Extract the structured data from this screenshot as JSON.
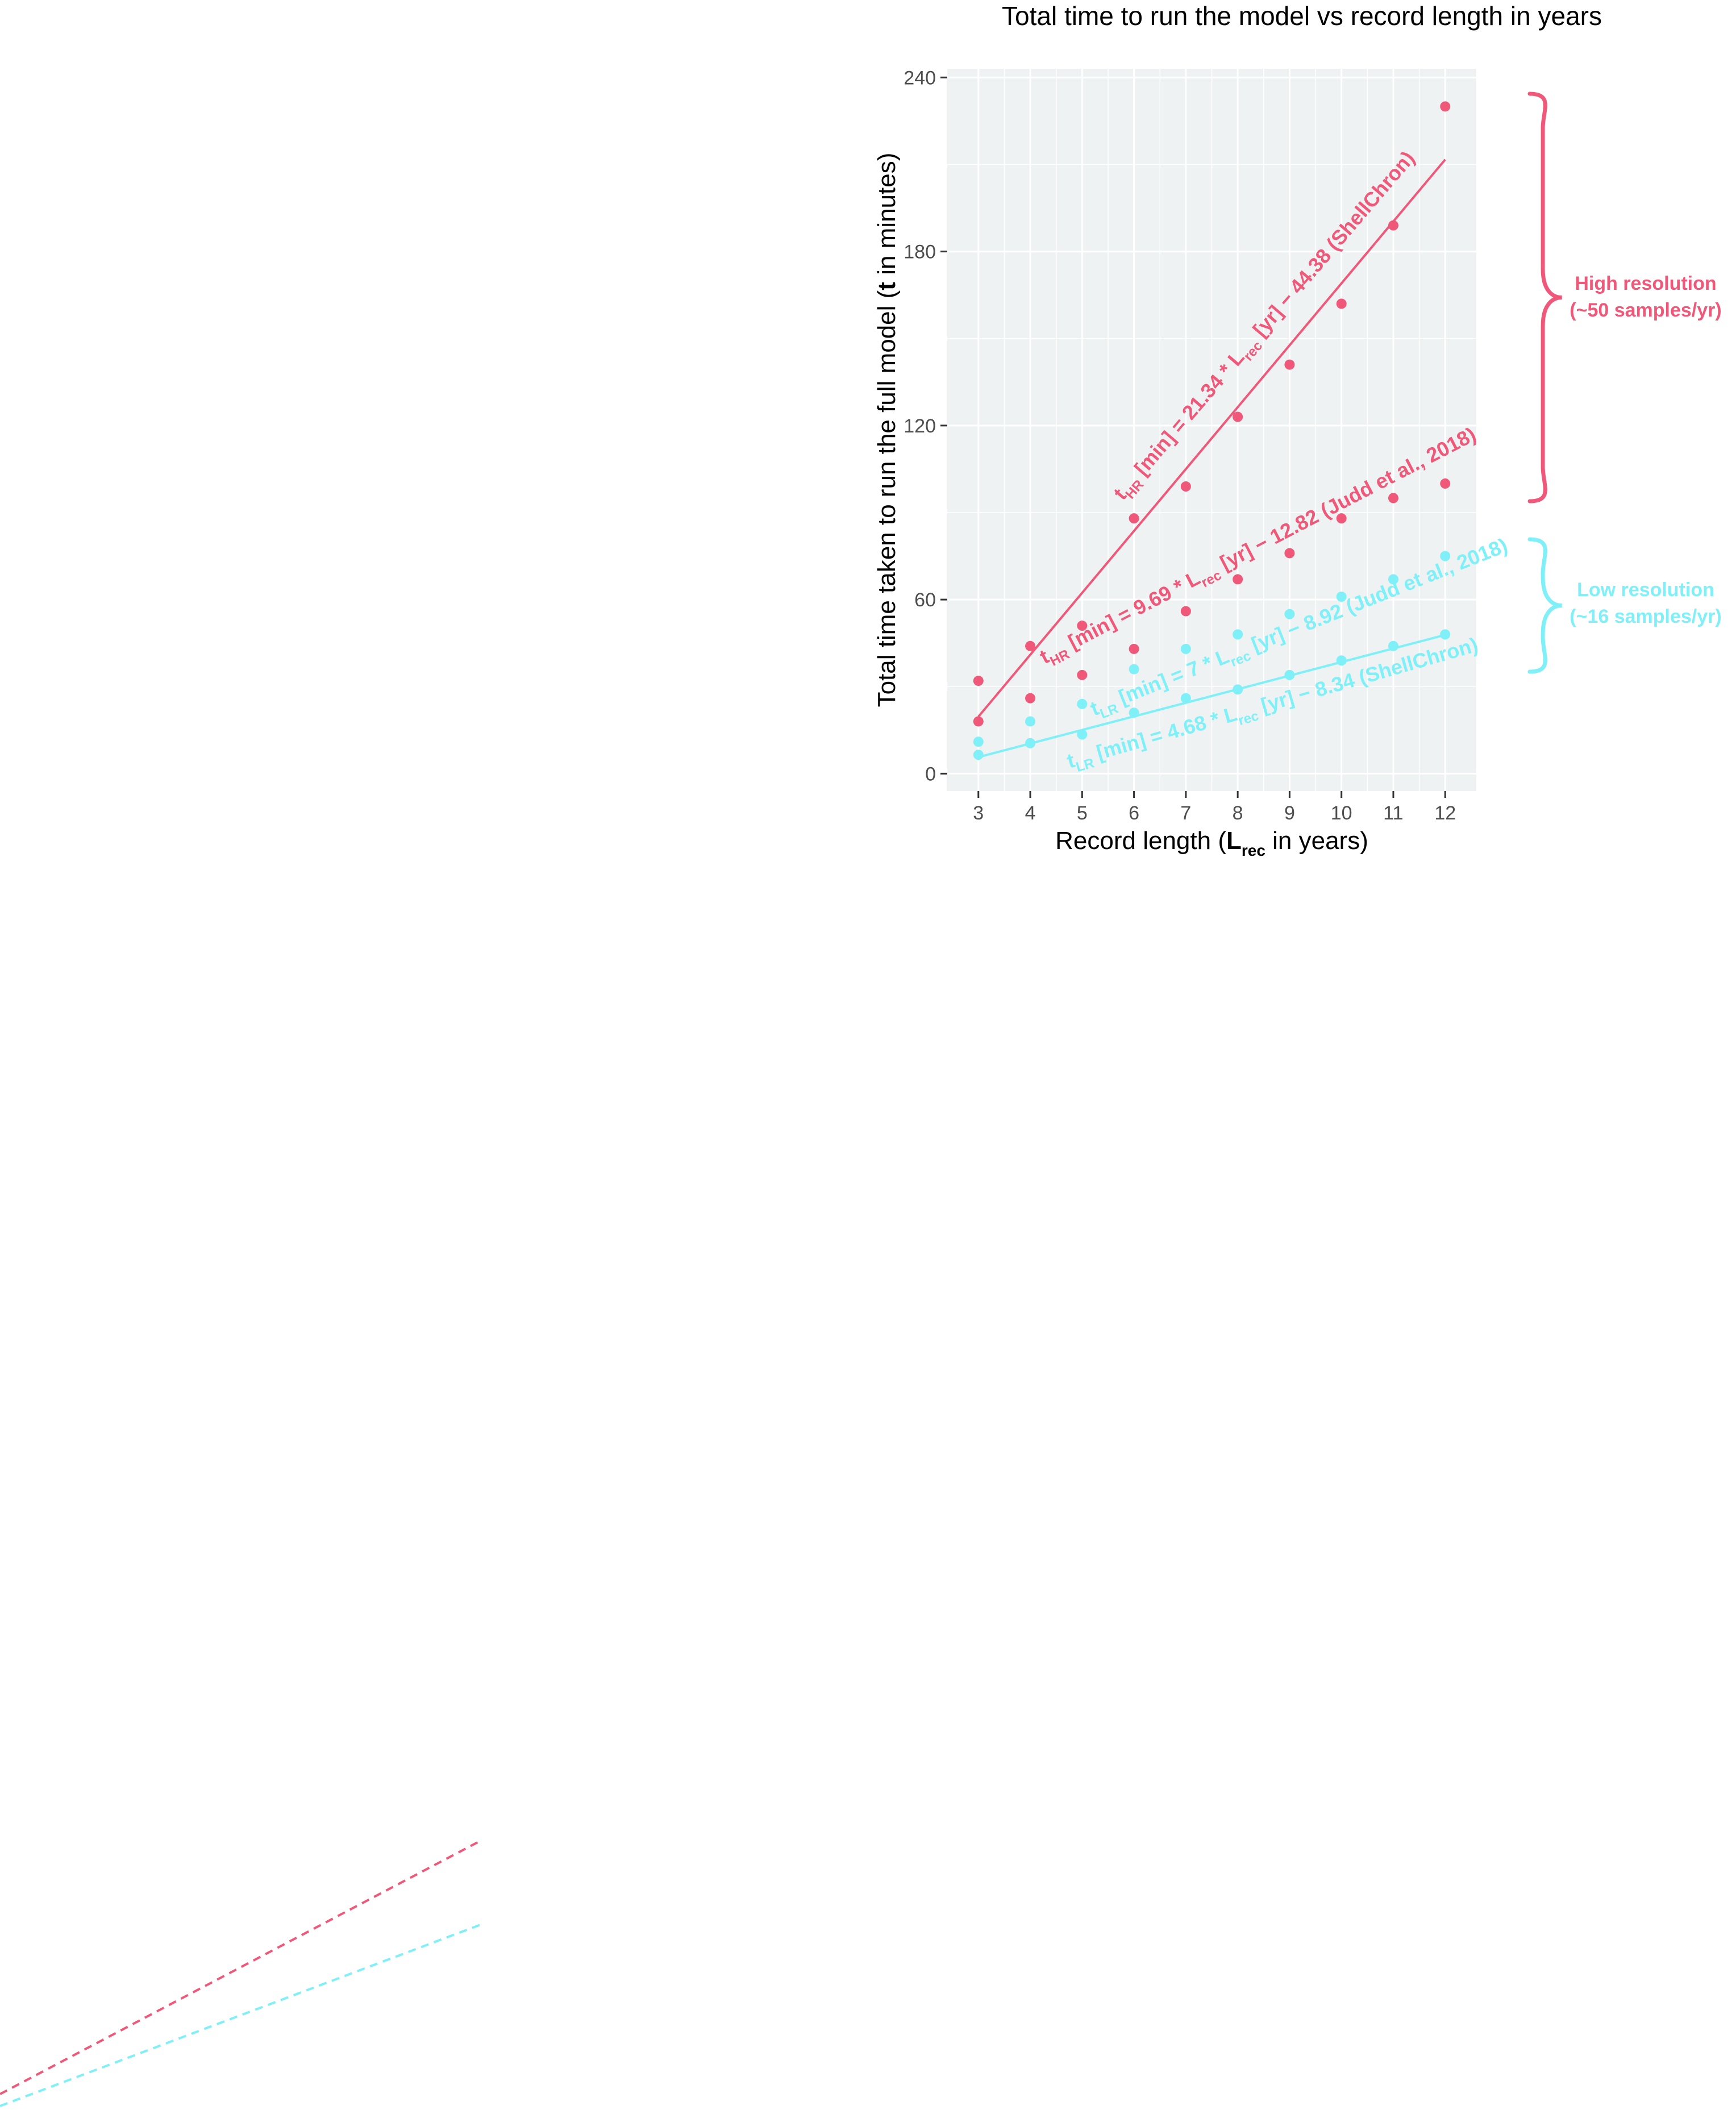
{
  "chart_data": {
    "type": "scatter",
    "title": "Total time to run the model vs record length in years",
    "xlabel": {
      "pre": "Record length (",
      "bold": "L",
      "sub": "rec",
      "post": " in years)"
    },
    "ylabel": {
      "pre": "Total time taken to run the full model (",
      "bold": "t",
      "post": " in minutes)"
    },
    "xlim": [
      2.4,
      12.6
    ],
    "ylim": [
      -6,
      243
    ],
    "x_ticks": [
      3,
      4,
      5,
      6,
      7,
      8,
      9,
      10,
      11,
      12
    ],
    "y_ticks": [
      0,
      60,
      120,
      180,
      240
    ],
    "grid": true,
    "colors": {
      "high": "#f0587a",
      "low": "#7ff0f8",
      "panel": "#eef2f2",
      "grid": "#ffffff"
    },
    "series": [
      {
        "key": "hr_shellchron",
        "group": "high",
        "x": [
          3,
          4,
          5,
          6,
          7,
          8,
          9,
          10,
          11,
          12
        ],
        "y": [
          18,
          26,
          34,
          88,
          99,
          123,
          141,
          162,
          189,
          230
        ]
      },
      {
        "key": "hr_judd",
        "group": "high",
        "x": [
          3,
          4,
          5,
          6,
          7,
          8,
          9,
          10,
          11,
          12
        ],
        "y": [
          32,
          44,
          51,
          43,
          56,
          67,
          76,
          88,
          95,
          100
        ]
      },
      {
        "key": "lr_shellchron",
        "group": "low",
        "x": [
          3,
          4,
          5,
          6,
          7,
          8,
          9,
          10,
          11,
          12
        ],
        "y": [
          6.5,
          10.5,
          13.5,
          21,
          26,
          29,
          34,
          39,
          44,
          48
        ]
      },
      {
        "key": "lr_judd",
        "group": "low",
        "x": [
          3,
          4,
          5,
          6,
          7,
          8,
          9,
          10,
          11,
          12
        ],
        "y": [
          11,
          18,
          24,
          36,
          43,
          48,
          55,
          61,
          67,
          75
        ]
      }
    ],
    "fit_lines": [
      {
        "key": "hr_shellchron",
        "group": "high",
        "slope": 21.34,
        "intercept": -44.38,
        "x_range": [
          3,
          12
        ]
      },
      {
        "key": "lr_shellchron",
        "group": "low",
        "slope": 4.68,
        "intercept": -8.34,
        "x_range": [
          3,
          12
        ]
      }
    ],
    "equations": [
      {
        "key": "hr_shellchron",
        "group": "high",
        "t": "t",
        "tsub": "HR",
        "mid": " [min] = 21.34 * ",
        "L": "L",
        "lsub": "rec",
        "post": " [yr] − 44.38 (ShellChron)"
      },
      {
        "key": "hr_judd",
        "group": "high",
        "t": "t",
        "tsub": "HR",
        "mid": " [min] = 9.69 * ",
        "L": "L",
        "lsub": "rec",
        "post": " [yr] − 12.82 (Judd et al., 2018)"
      },
      {
        "key": "lr_judd",
        "group": "low",
        "t": "t",
        "tsub": "LR",
        "mid": " [min] = 7 * ",
        "L": "L",
        "lsub": "rec",
        "post": " [yr] − 8.92 (Judd et al., 2018)"
      },
      {
        "key": "lr_shellchron",
        "group": "low",
        "t": "t",
        "tsub": "LR",
        "mid": " [min] = 4.68 * ",
        "L": "L",
        "lsub": "rec",
        "post": " [yr] − 8.34 (ShellChron)"
      }
    ],
    "annotations": [
      {
        "group": "high",
        "line1": "High resolution",
        "line2": "(~50 samples/yr)"
      },
      {
        "group": "low",
        "line1": "Low resolution",
        "line2": "(~16 samples/yr)"
      }
    ]
  }
}
